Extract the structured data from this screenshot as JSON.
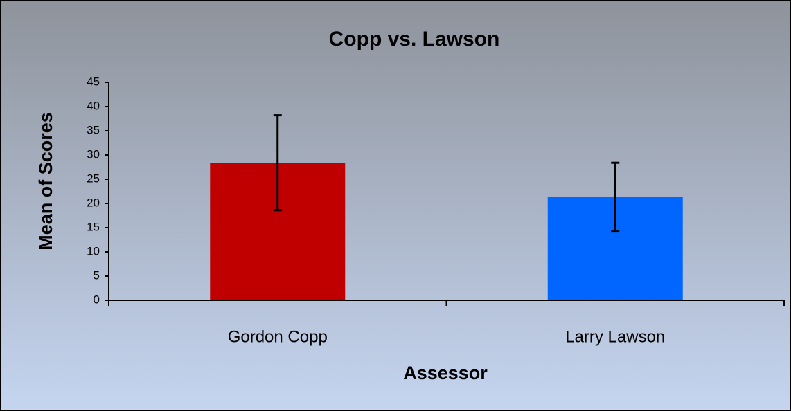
{
  "chart_data": {
    "type": "bar",
    "title": "Copp vs. Lawson",
    "x_label": "Assessor",
    "y_label": "Mean of Scores",
    "categories": [
      "Gordon Copp",
      "Larry Lawson"
    ],
    "values": [
      28.4,
      21.3
    ],
    "errors": [
      9.8,
      7.1
    ],
    "colors": [
      "#c00000",
      "#0066ff"
    ],
    "ylim": [
      0,
      45
    ],
    "yticks": [
      0,
      5,
      10,
      15,
      20,
      25,
      30,
      35,
      40,
      45
    ]
  }
}
